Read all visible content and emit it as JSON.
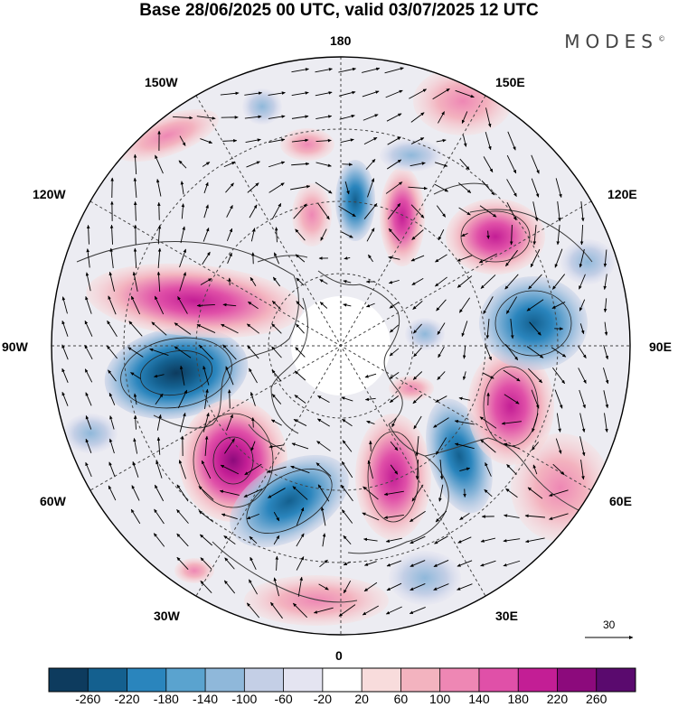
{
  "title": "Base 28/06/2025 00 UTC, valid 03/07/2025 12 UTC",
  "brand": "MODES",
  "brand_mark": "©",
  "longitude_labels": {
    "top": "180",
    "bottom": "0",
    "left": "90W",
    "right": "90E",
    "upper_left_1": "150W",
    "upper_left_2": "120W",
    "lower_left_1": "60W",
    "lower_left_2": "30W",
    "upper_right_1": "150E",
    "upper_right_2": "120E",
    "lower_right_1": "60E",
    "lower_right_2": "30E"
  },
  "reference_vector": "30",
  "colorbar": {
    "labels": [
      "-260",
      "-220",
      "-180",
      "-140",
      "-100",
      "-60",
      "-20",
      "20",
      "60",
      "100",
      "140",
      "180",
      "220",
      "260"
    ],
    "colors": [
      "#0d3b5e",
      "#14608f",
      "#2a85bd",
      "#5aa3cf",
      "#8fb8da",
      "#c4cfe6",
      "#e4e4f1",
      "#ffffff",
      "#f8dcdc",
      "#f3b3bf",
      "#ee87b4",
      "#e050a8",
      "#c31e95",
      "#8c0a7c",
      "#5a0a6e"
    ]
  },
  "colors": {
    "positive_anomaly": "#d4349a",
    "negative_anomaly": "#2a7db8",
    "land_outline": "#3a3a3a",
    "grid": "#444444"
  },
  "icons": [
    "wind-vector-arrow",
    "reference-vector-arrow"
  ]
}
